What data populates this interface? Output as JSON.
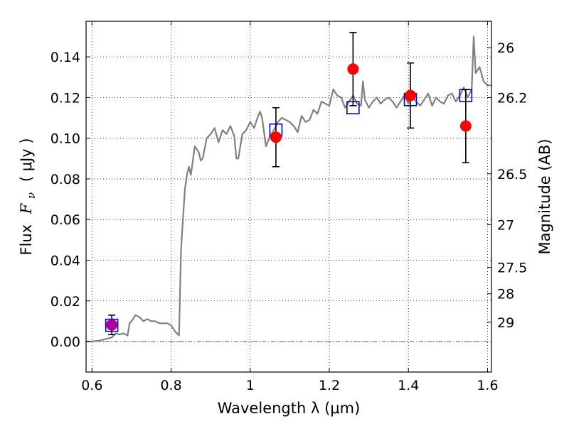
{
  "chart_data": {
    "type": "scatter",
    "xlabel": "Wavelength  λ (μm)",
    "ylabel_left": "Flux  Fν  ( μJy )",
    "ylabel_left_parts": {
      "prefix": "Flux",
      "symbol": "F",
      "subscript": "ν",
      "unit": "( μJy )"
    },
    "ylabel_right": "Magnitude (AB)",
    "xlim": [
      0.585,
      1.61
    ],
    "ylim": [
      -0.015,
      0.1575
    ],
    "xticks": [
      {
        "value": 0.6,
        "label": "0.6"
      },
      {
        "value": 0.8,
        "label": "0.8"
      },
      {
        "value": 1.0,
        "label": "1"
      },
      {
        "value": 1.2,
        "label": "1.2"
      },
      {
        "value": 1.4,
        "label": "1.4"
      },
      {
        "value": 1.6,
        "label": "1.6"
      }
    ],
    "yticks": [
      {
        "value": 0.0,
        "label": "0.00"
      },
      {
        "value": 0.02,
        "label": "0.02"
      },
      {
        "value": 0.04,
        "label": "0.04"
      },
      {
        "value": 0.06,
        "label": "0.06"
      },
      {
        "value": 0.08,
        "label": "0.08"
      },
      {
        "value": 0.1,
        "label": "0.10"
      },
      {
        "value": 0.12,
        "label": "0.12"
      },
      {
        "value": 0.14,
        "label": "0.14"
      }
    ],
    "right_ticks": [
      {
        "flux": 0.1445,
        "label": "26"
      },
      {
        "flux": 0.12,
        "label": "26.2"
      },
      {
        "flux": 0.0825,
        "label": "26.5"
      },
      {
        "flux": 0.0575,
        "label": "27"
      },
      {
        "flux": 0.0365,
        "label": "27.5"
      },
      {
        "flux": 0.0235,
        "label": "28"
      },
      {
        "flux": 0.0095,
        "label": "29"
      }
    ],
    "grid": true,
    "reference_line": {
      "y": 0.0,
      "style": "dash-dot"
    },
    "series": [
      {
        "kind": "model_spectrum",
        "color": "#808080",
        "x": [
          0.585,
          0.6,
          0.62,
          0.63,
          0.64,
          0.65,
          0.66,
          0.67,
          0.68,
          0.69,
          0.695,
          0.7,
          0.71,
          0.72,
          0.73,
          0.74,
          0.75,
          0.76,
          0.77,
          0.78,
          0.79,
          0.8,
          0.81,
          0.82,
          0.825,
          0.83,
          0.835,
          0.84,
          0.845,
          0.85,
          0.86,
          0.87,
          0.875,
          0.88,
          0.89,
          0.9,
          0.91,
          0.92,
          0.93,
          0.94,
          0.95,
          0.96,
          0.965,
          0.97,
          0.98,
          0.99,
          1.0,
          1.01,
          1.02,
          1.025,
          1.03,
          1.04,
          1.05,
          1.06,
          1.07,
          1.08,
          1.09,
          1.1,
          1.11,
          1.12,
          1.13,
          1.14,
          1.15,
          1.16,
          1.17,
          1.18,
          1.19,
          1.2,
          1.21,
          1.22,
          1.23,
          1.24,
          1.25,
          1.26,
          1.27,
          1.28,
          1.285,
          1.29,
          1.3,
          1.31,
          1.32,
          1.33,
          1.34,
          1.35,
          1.36,
          1.37,
          1.38,
          1.39,
          1.4,
          1.41,
          1.42,
          1.43,
          1.44,
          1.45,
          1.46,
          1.47,
          1.48,
          1.49,
          1.5,
          1.51,
          1.52,
          1.53,
          1.54,
          1.55,
          1.56,
          1.565,
          1.57,
          1.58,
          1.59,
          1.6,
          1.61
        ],
        "y": [
          0.0,
          0.0,
          0.0005,
          0.001,
          0.0015,
          0.002,
          0.004,
          0.0035,
          0.004,
          0.003,
          0.009,
          0.01,
          0.013,
          0.012,
          0.01,
          0.011,
          0.01,
          0.01,
          0.009,
          0.009,
          0.009,
          0.008,
          0.005,
          0.003,
          0.045,
          0.06,
          0.075,
          0.082,
          0.086,
          0.082,
          0.096,
          0.093,
          0.089,
          0.09,
          0.1,
          0.102,
          0.105,
          0.098,
          0.104,
          0.102,
          0.106,
          0.101,
          0.09,
          0.09,
          0.102,
          0.104,
          0.108,
          0.105,
          0.111,
          0.113,
          0.11,
          0.096,
          0.101,
          0.104,
          0.108,
          0.11,
          0.109,
          0.108,
          0.106,
          0.103,
          0.111,
          0.108,
          0.109,
          0.114,
          0.112,
          0.118,
          0.117,
          0.116,
          0.124,
          0.121,
          0.12,
          0.115,
          0.118,
          0.121,
          0.117,
          0.116,
          0.128,
          0.119,
          0.115,
          0.118,
          0.12,
          0.117,
          0.119,
          0.12,
          0.118,
          0.115,
          0.118,
          0.121,
          0.117,
          0.12,
          0.118,
          0.116,
          0.119,
          0.122,
          0.116,
          0.12,
          0.118,
          0.117,
          0.121,
          0.122,
          0.118,
          0.121,
          0.125,
          0.12,
          0.124,
          0.15,
          0.132,
          0.135,
          0.128,
          0.126,
          0.126
        ]
      },
      {
        "kind": "model_bandpass_points",
        "marker": "open-square",
        "color": "#0000cc",
        "points": [
          {
            "x": 0.65,
            "y": 0.008
          },
          {
            "x": 1.065,
            "y": 0.104
          },
          {
            "x": 1.26,
            "y": 0.115
          },
          {
            "x": 1.405,
            "y": 0.119
          },
          {
            "x": 1.545,
            "y": 0.121
          }
        ]
      },
      {
        "kind": "observed_photometry",
        "marker": "filled-circle",
        "color": "#ff0000",
        "points": [
          {
            "x": 0.65,
            "y": 0.0082,
            "err": 0.0048,
            "color": "#aa0099"
          },
          {
            "x": 1.065,
            "y": 0.1005,
            "err": 0.0145
          },
          {
            "x": 1.26,
            "y": 0.134,
            "err": 0.018
          },
          {
            "x": 1.405,
            "y": 0.121,
            "err": 0.016
          },
          {
            "x": 1.545,
            "y": 0.106,
            "err": 0.018
          }
        ]
      }
    ]
  }
}
